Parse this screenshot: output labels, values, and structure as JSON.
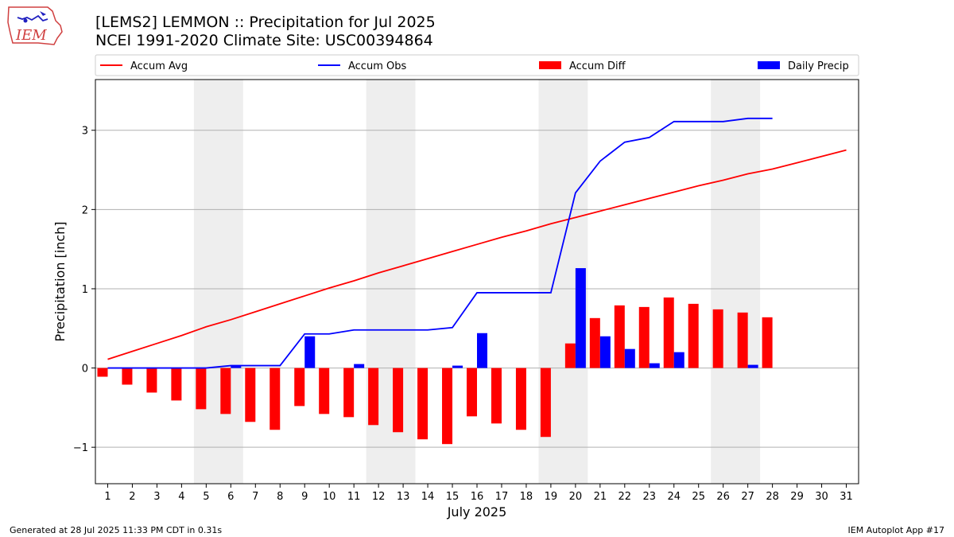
{
  "header": {
    "logo_text": "IEM",
    "title": "[LEMS2] LEMMON :: Precipitation for Jul 2025",
    "subtitle": "NCEI 1991-2020 Climate Site: USC00394864"
  },
  "footer": {
    "left": "Generated at 28 Jul 2025 11:33 PM CDT in 0.31s",
    "right": "IEM Autoplot App #17"
  },
  "colors": {
    "accum_avg": "#ff0000",
    "accum_obs": "#0000ff",
    "accum_diff": "#ff0000",
    "daily_precip": "#0000ff",
    "weekend_shade": "#eeeeee",
    "grid": "#b0b0b0"
  },
  "chart_data": {
    "type": "bar",
    "title": "[LEMS2] LEMMON :: Precipitation for Jul 2025",
    "subtitle": "NCEI 1991-2020 Climate Site: USC00394864",
    "xlabel": "July 2025",
    "ylabel": "Precipitation [inch]",
    "x": [
      1,
      2,
      3,
      4,
      5,
      6,
      7,
      8,
      9,
      10,
      11,
      12,
      13,
      14,
      15,
      16,
      17,
      18,
      19,
      20,
      21,
      22,
      23,
      24,
      25,
      26,
      27,
      28,
      29,
      30,
      31
    ],
    "x_tick_labels": [
      "1",
      "2",
      "3",
      "4",
      "5",
      "6",
      "7",
      "8",
      "9",
      "10",
      "11",
      "12",
      "13",
      "14",
      "15",
      "16",
      "17",
      "18",
      "19",
      "20",
      "21",
      "22",
      "23",
      "24",
      "25",
      "26",
      "27",
      "28",
      "29",
      "30",
      "31"
    ],
    "xlim": [
      0.5,
      31.5
    ],
    "ylim": [
      -1.46,
      3.64
    ],
    "y_ticks": [
      -1,
      0,
      1,
      2,
      3
    ],
    "y_tick_labels": [
      "−1",
      "0",
      "1",
      "2",
      "3"
    ],
    "grid": "y",
    "legend_placement": "top, outside plot area",
    "weekend_shading": [
      [
        4.5,
        6.5
      ],
      [
        11.5,
        13.5
      ],
      [
        18.5,
        20.5
      ],
      [
        25.5,
        27.5
      ]
    ],
    "series": [
      {
        "name": "Accum Avg",
        "type": "line",
        "color": "#ff0000",
        "x": [
          1,
          2,
          3,
          4,
          5,
          6,
          7,
          8,
          9,
          10,
          11,
          12,
          13,
          14,
          15,
          16,
          17,
          18,
          19,
          20,
          21,
          22,
          23,
          24,
          25,
          26,
          27,
          28,
          29,
          30,
          31
        ],
        "values": [
          0.11,
          0.21,
          0.31,
          0.41,
          0.52,
          0.61,
          0.71,
          0.81,
          0.91,
          1.01,
          1.1,
          1.2,
          1.29,
          1.38,
          1.47,
          1.56,
          1.65,
          1.73,
          1.82,
          1.9,
          1.98,
          2.06,
          2.14,
          2.22,
          2.3,
          2.37,
          2.45,
          2.51,
          2.59,
          2.67,
          2.75
        ]
      },
      {
        "name": "Accum Obs",
        "type": "line",
        "color": "#0000ff",
        "x": [
          1,
          2,
          3,
          4,
          5,
          6,
          7,
          8,
          9,
          10,
          11,
          12,
          13,
          14,
          15,
          16,
          17,
          18,
          19,
          20,
          21,
          22,
          23,
          24,
          25,
          26,
          27,
          28
        ],
        "values": [
          0.0,
          0.0,
          0.0,
          0.0,
          0.0,
          0.03,
          0.03,
          0.03,
          0.43,
          0.43,
          0.48,
          0.48,
          0.48,
          0.48,
          0.51,
          0.95,
          0.95,
          0.95,
          0.95,
          2.21,
          2.61,
          2.85,
          2.91,
          3.11,
          3.11,
          3.11,
          3.15,
          3.15
        ]
      },
      {
        "name": "Accum Diff",
        "type": "bar",
        "color": "#ff0000",
        "x": [
          1,
          2,
          3,
          4,
          5,
          6,
          7,
          8,
          9,
          10,
          11,
          12,
          13,
          14,
          15,
          16,
          17,
          18,
          19,
          20,
          21,
          22,
          23,
          24,
          25,
          26,
          27,
          28
        ],
        "values": [
          -0.11,
          -0.21,
          -0.31,
          -0.41,
          -0.52,
          -0.58,
          -0.68,
          -0.78,
          -0.48,
          -0.58,
          -0.62,
          -0.72,
          -0.81,
          -0.9,
          -0.96,
          -0.61,
          -0.7,
          -0.78,
          -0.87,
          0.31,
          0.63,
          0.79,
          0.77,
          0.89,
          0.81,
          0.74,
          0.7,
          0.64
        ]
      },
      {
        "name": "Daily Precip",
        "type": "bar",
        "color": "#0000ff",
        "x": [
          1,
          2,
          3,
          4,
          5,
          6,
          7,
          8,
          9,
          10,
          11,
          12,
          13,
          14,
          15,
          16,
          17,
          18,
          19,
          20,
          21,
          22,
          23,
          24,
          25,
          26,
          27,
          28
        ],
        "values": [
          0,
          0,
          0,
          0,
          0,
          0.03,
          0,
          0,
          0.4,
          0,
          0.05,
          0,
          0,
          0,
          0.03,
          0.44,
          0,
          0,
          0,
          1.26,
          0.4,
          0.24,
          0.06,
          0.2,
          0,
          0,
          0.04,
          0
        ]
      }
    ]
  }
}
